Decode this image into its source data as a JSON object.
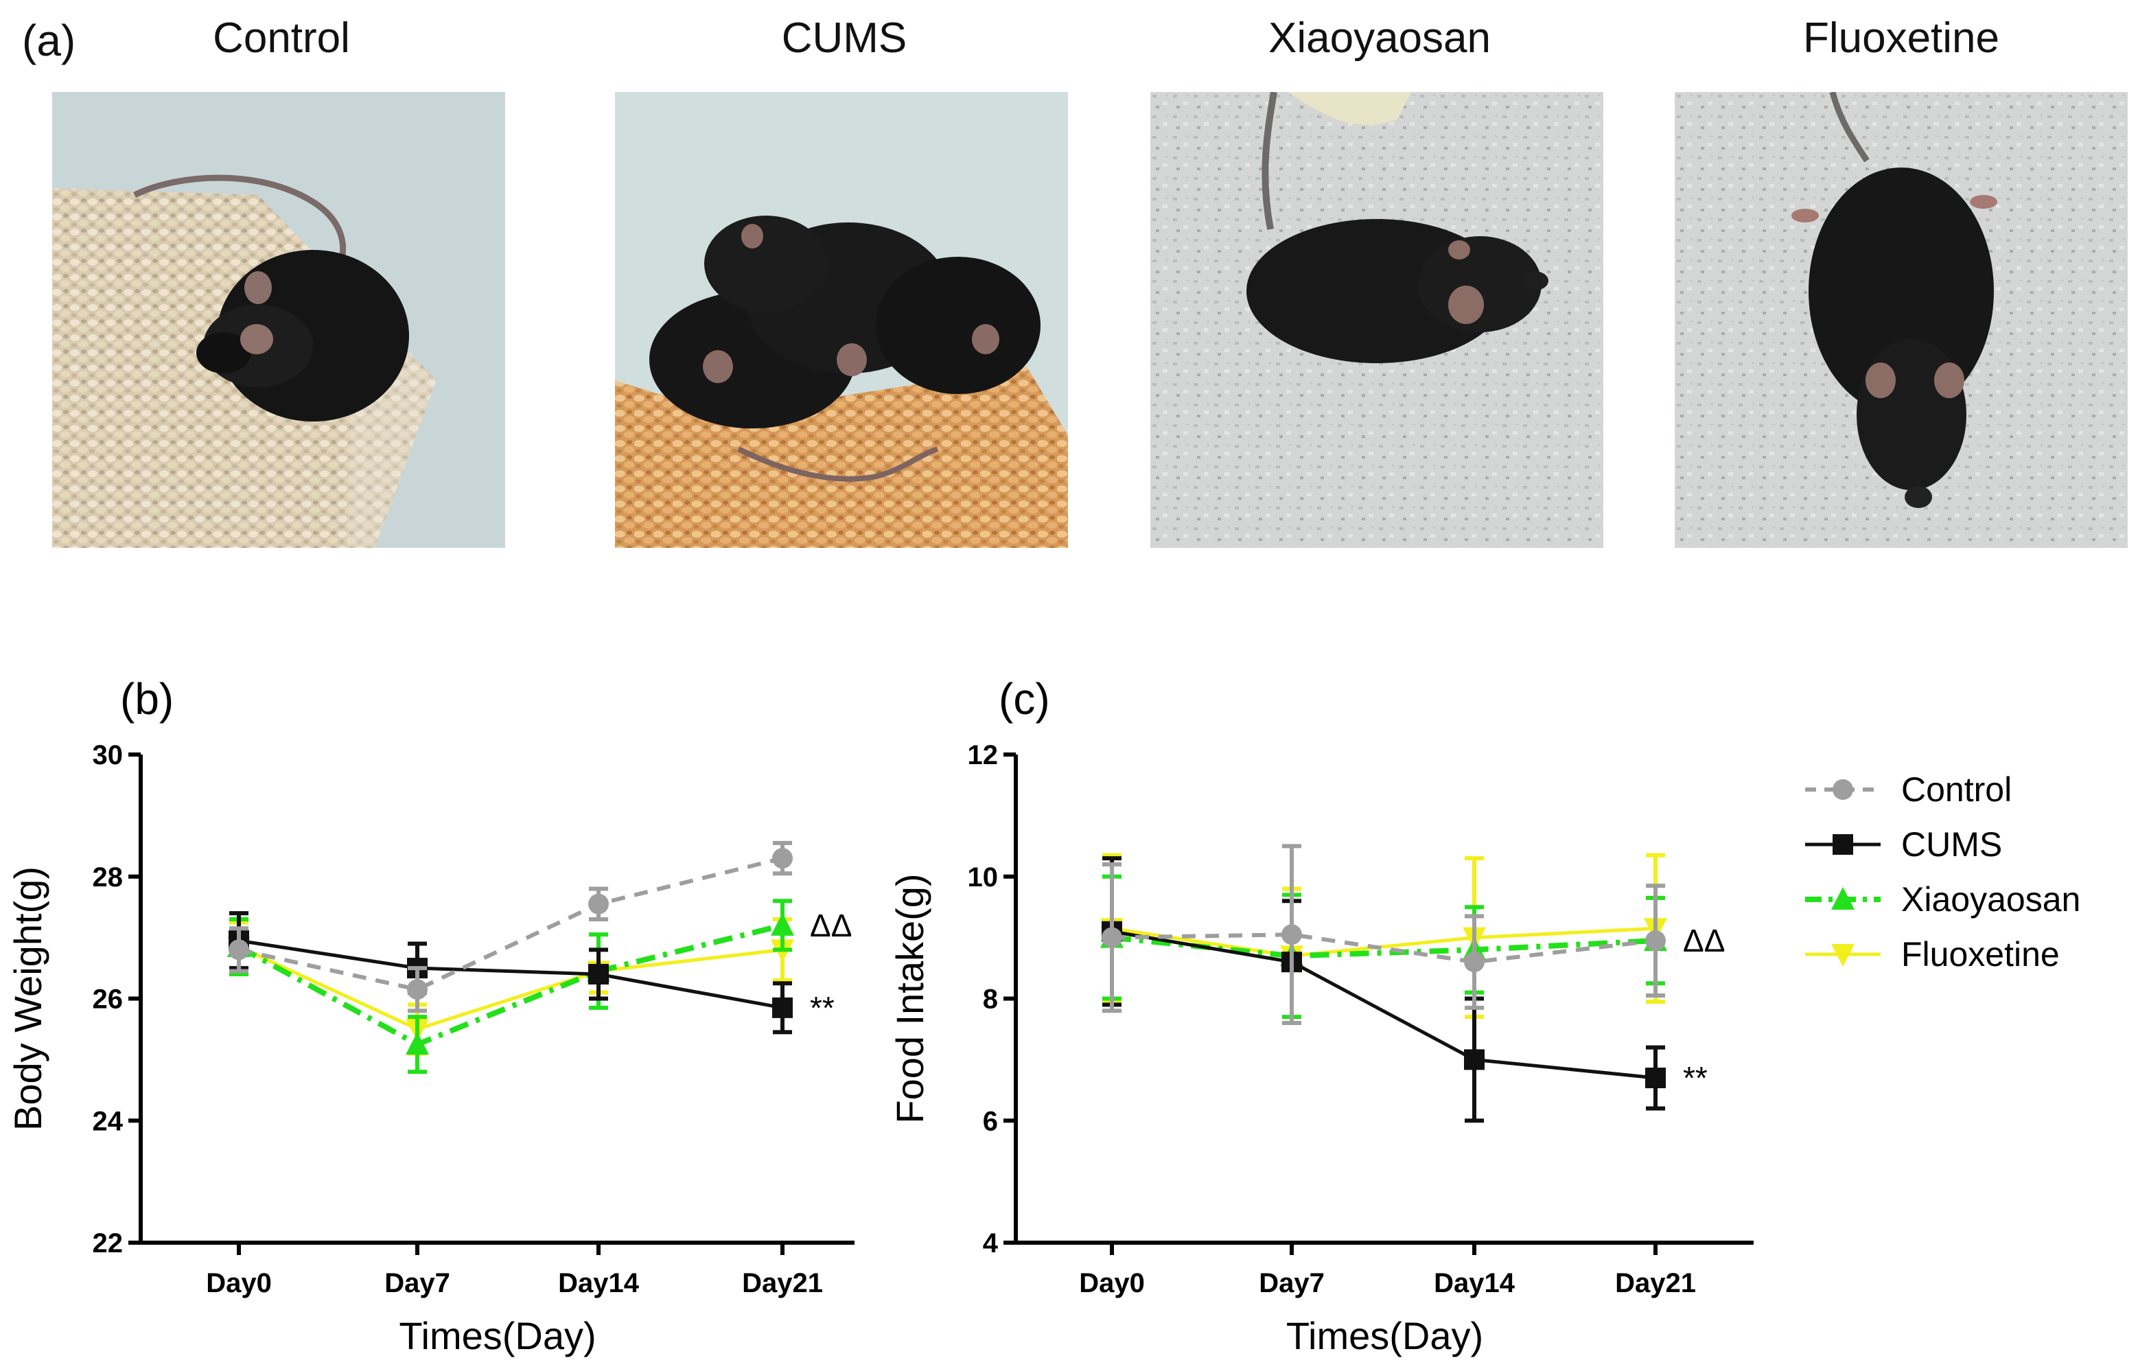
{
  "panel_a": {
    "letter": "(a)",
    "photos": [
      {
        "label": "Control"
      },
      {
        "label": "CUMS"
      },
      {
        "label": "Xiaoyaosan"
      },
      {
        "label": "Fluoxetine"
      }
    ]
  },
  "colors": {
    "Control": "#9e9e9e",
    "CUMS": "#111111",
    "Xiaoyaosan": "#22e01a",
    "Fluoxetine": "#f2ef1c"
  },
  "legend": [
    "Control",
    "CUMS",
    "Xiaoyaosan",
    "Fluoxetine"
  ],
  "chart_data": [
    {
      "panel": "(b)",
      "type": "line",
      "categories": [
        "Day0",
        "Day7",
        "Day14",
        "Day21"
      ],
      "xlabel": "Times(Day)",
      "ylabel": "Body Weight(g)",
      "ylim": [
        22,
        30
      ],
      "yticks": [
        "22",
        "24",
        "26",
        "28",
        "30"
      ],
      "series": [
        {
          "name": "Control",
          "marker": "circle",
          "line": "dashed",
          "values": [
            26.8,
            26.15,
            27.55,
            28.3
          ],
          "err": [
            0.35,
            0.35,
            0.25,
            0.25
          ]
        },
        {
          "name": "CUMS",
          "marker": "square",
          "line": "solid",
          "values": [
            26.95,
            26.5,
            26.4,
            25.85
          ],
          "err": [
            0.45,
            0.4,
            0.4,
            0.4
          ]
        },
        {
          "name": "Xiaoyaosan",
          "marker": "triangle-up",
          "line": "dashdot",
          "values": [
            26.85,
            25.25,
            26.45,
            27.2
          ],
          "err": [
            0.45,
            0.45,
            0.6,
            0.4
          ]
        },
        {
          "name": "Fluoxetine",
          "marker": "triangle-down",
          "line": "solid",
          "values": [
            26.85,
            25.5,
            26.45,
            26.8
          ],
          "err": [
            0.4,
            0.4,
            0.35,
            0.5
          ]
        }
      ],
      "annotations": [
        {
          "text": "ΔΔ",
          "series": "Xiaoyaosan",
          "category": "Day21"
        },
        {
          "text": "**",
          "series": "CUMS",
          "category": "Day21"
        }
      ]
    },
    {
      "panel": "(c)",
      "type": "line",
      "categories": [
        "Day0",
        "Day7",
        "Day14",
        "Day21"
      ],
      "xlabel": "Times(Day)",
      "ylabel": "Food Intake(g)",
      "ylim": [
        4,
        12
      ],
      "yticks": [
        "4",
        "6",
        "8",
        "10",
        "12"
      ],
      "series": [
        {
          "name": "Control",
          "marker": "circle",
          "line": "dashed",
          "values": [
            9.0,
            9.05,
            8.6,
            8.95
          ],
          "err": [
            1.2,
            1.45,
            0.75,
            0.9
          ]
        },
        {
          "name": "CUMS",
          "marker": "square",
          "line": "solid",
          "values": [
            9.1,
            8.6,
            7.0,
            6.7
          ],
          "err": [
            1.2,
            1.0,
            1.0,
            0.5
          ]
        },
        {
          "name": "Xiaoyaosan",
          "marker": "triangle-up",
          "line": "dashdot",
          "values": [
            9.0,
            8.7,
            8.8,
            8.95
          ],
          "err": [
            1.0,
            1.0,
            0.7,
            0.7
          ]
        },
        {
          "name": "Fluoxetine",
          "marker": "triangle-down",
          "line": "solid",
          "values": [
            9.15,
            8.7,
            9.0,
            9.15
          ],
          "err": [
            1.2,
            1.1,
            1.3,
            1.2
          ]
        }
      ],
      "annotations": [
        {
          "text": "ΔΔ",
          "series": "Control",
          "category": "Day21"
        },
        {
          "text": "**",
          "series": "CUMS",
          "category": "Day21"
        }
      ]
    }
  ]
}
